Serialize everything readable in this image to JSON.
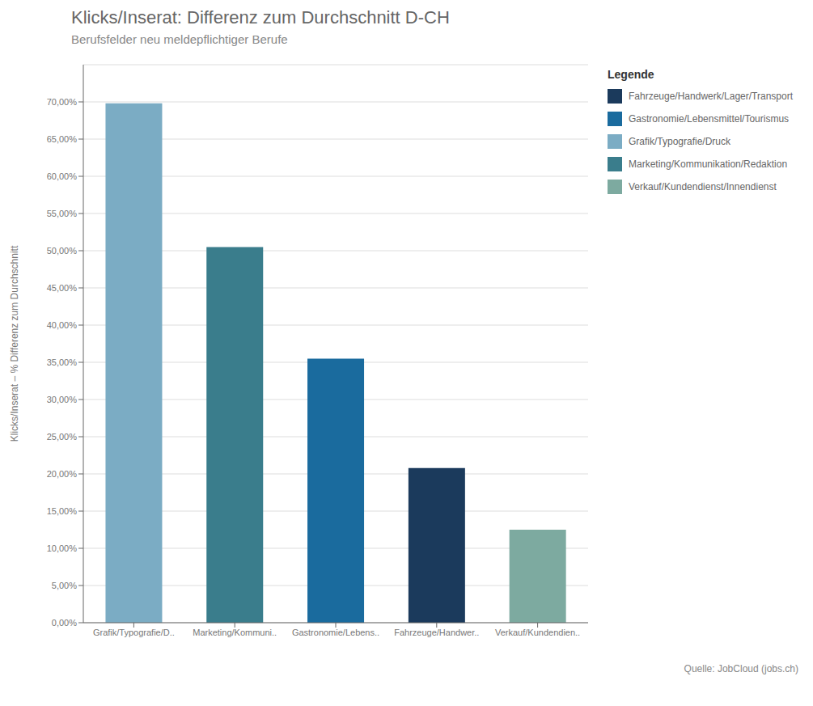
{
  "chart_data": {
    "type": "bar",
    "title": "Klicks/Inserat: Differenz zum Durchschnitt D-CH",
    "subtitle": "Berufsfelder neu meldepflichtiger Berufe",
    "ylabel": "Klicks/Inserat – % Differenz zum Durchschnitt",
    "source": "Quelle: JobCloud (jobs.ch)",
    "legend_title": "Legende",
    "categories": [
      "Grafik/Typografie/D..",
      "Marketing/Kommuni..",
      "Gastronomie/Lebens..",
      "Fahrzeuge/Handwer..",
      "Verkauf/Kundendien.."
    ],
    "series": [
      {
        "name": "Fahrzeuge/Handwerk/Lager/Transport",
        "color": "#1B3A5C",
        "values": [
          null,
          null,
          null,
          0.208,
          null
        ]
      },
      {
        "name": "Gastronomie/Lebensmittel/Tourismus",
        "color": "#1A6B9E",
        "values": [
          null,
          null,
          0.355,
          null,
          null
        ]
      },
      {
        "name": "Grafik/Typografie/Druck",
        "color": "#7BACC4",
        "values": [
          0.698,
          null,
          null,
          null,
          null
        ]
      },
      {
        "name": "Marketing/Kommunikation/Redaktion",
        "color": "#3A7D8C",
        "values": [
          null,
          0.505,
          null,
          null,
          null
        ]
      },
      {
        "name": "Verkauf/Kundendienst/Innendienst",
        "color": "#7DAAA0",
        "values": [
          null,
          null,
          null,
          null,
          0.125
        ]
      }
    ],
    "stacked": true,
    "ylim": [
      0,
      0.75
    ],
    "yticks": [
      {
        "value": 0.0,
        "label": "0,00%"
      },
      {
        "value": 0.05,
        "label": "5,00%"
      },
      {
        "value": 0.1,
        "label": "10,00%"
      },
      {
        "value": 0.15,
        "label": "15,00%"
      },
      {
        "value": 0.2,
        "label": "20,00%"
      },
      {
        "value": 0.25,
        "label": "25,00%"
      },
      {
        "value": 0.3,
        "label": "30,00%"
      },
      {
        "value": 0.35,
        "label": "35,00%"
      },
      {
        "value": 0.4,
        "label": "40,00%"
      },
      {
        "value": 0.45,
        "label": "45,00%"
      },
      {
        "value": 0.5,
        "label": "50,00%"
      },
      {
        "value": 0.55,
        "label": "55,00%"
      },
      {
        "value": 0.6,
        "label": "60,00%"
      },
      {
        "value": 0.65,
        "label": "65,00%"
      },
      {
        "value": 0.7,
        "label": "70,00%"
      }
    ],
    "grid": true,
    "legend": "upper right"
  }
}
